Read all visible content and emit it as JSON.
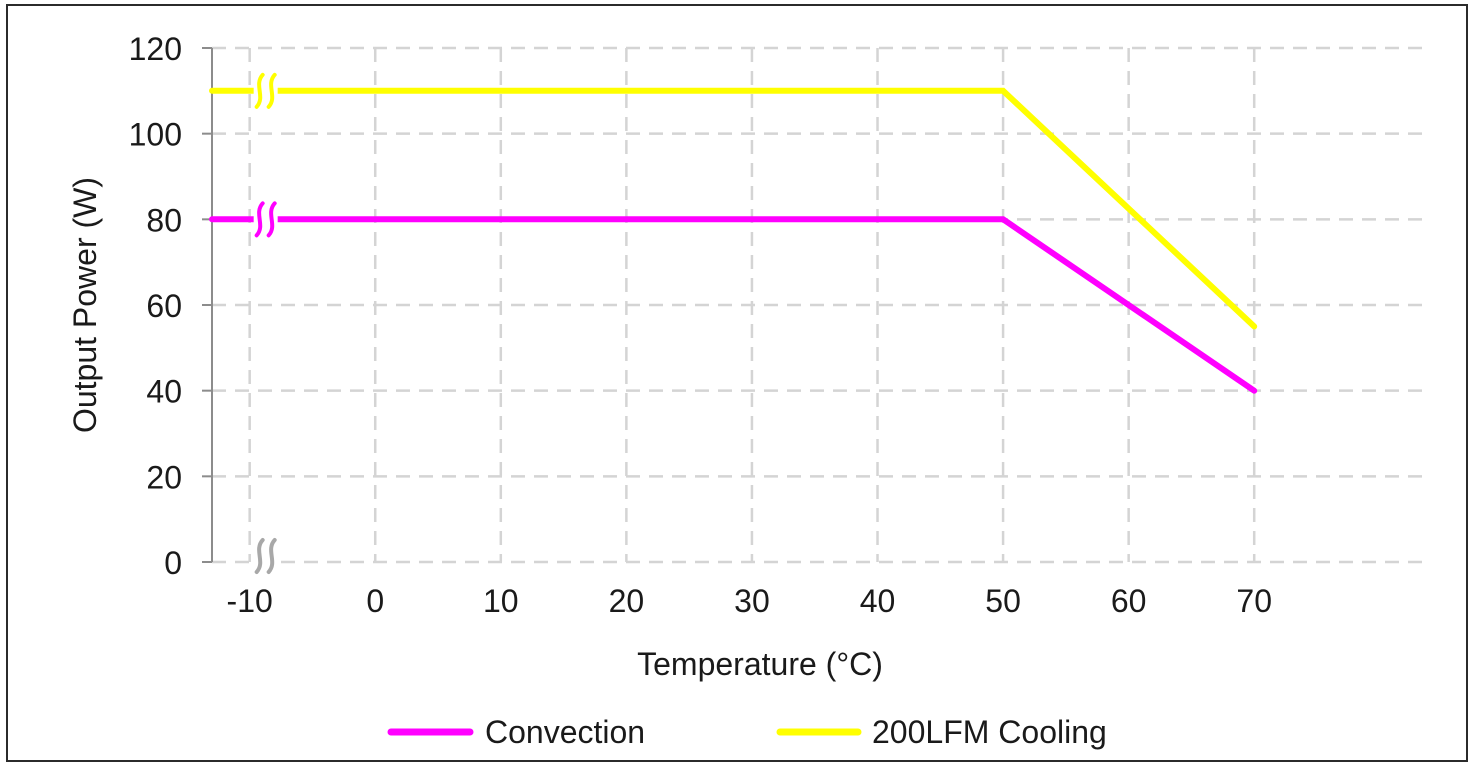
{
  "chart_data": {
    "type": "line",
    "xlabel": "Temperature (°C)",
    "ylabel": "Output Power (W)",
    "x_ticks": [
      "-10",
      "0",
      "10",
      "20",
      "30",
      "40",
      "50",
      "60",
      "70"
    ],
    "y_ticks": [
      "0",
      "20",
      "40",
      "60",
      "80",
      "100",
      "120"
    ],
    "xlim": [
      -13,
      84
    ],
    "ylim": [
      0,
      120
    ],
    "grid": true,
    "legend_position": "bottom",
    "x_axis_break_at": -10,
    "series": [
      {
        "name": "Convection",
        "color": "#FF00FF",
        "x": [
          -13,
          50,
          70
        ],
        "y": [
          80,
          80,
          40
        ]
      },
      {
        "name": "200LFM Cooling",
        "color": "#FFFF00",
        "x": [
          -13,
          50,
          70
        ],
        "y": [
          110,
          110,
          55
        ]
      }
    ]
  },
  "colors": {
    "grid": "#d4d4d4",
    "axis": "#8c8c8c",
    "frame": "#2b2b2b"
  }
}
